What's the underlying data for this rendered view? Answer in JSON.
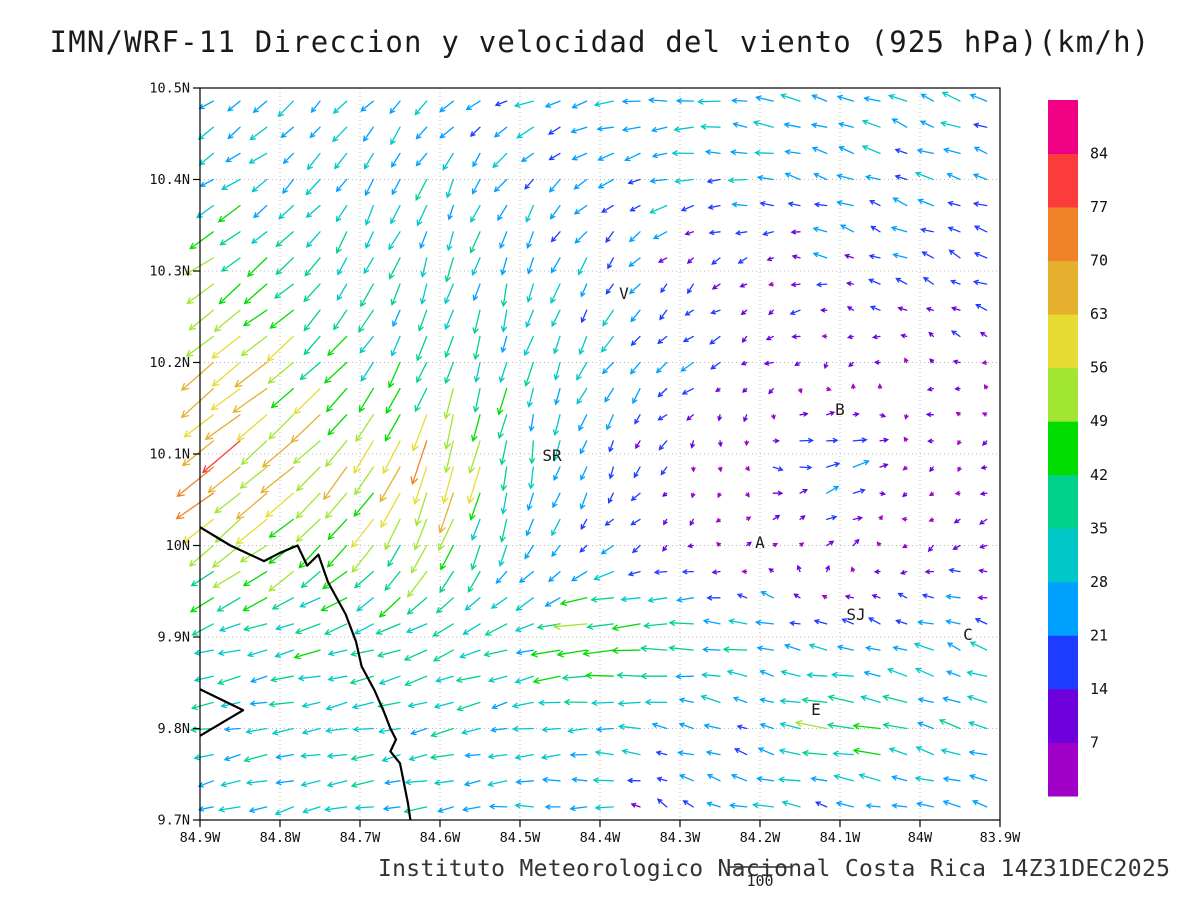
{
  "chart_data": {
    "type": "vector-field",
    "title": "IMN/WRF-11 Direccion y velocidad del viento (925 hPa)(km/h)",
    "caption": "Instituto Meteorologico Nacional Costa Rica 14Z31DEC2025",
    "ref_label": "100",
    "speed_units": "km/h",
    "level": "925 hPa",
    "x_ticks": [
      "84.9W",
      "84.8W",
      "84.7W",
      "84.6W",
      "84.5W",
      "84.4W",
      "84.3W",
      "84.2W",
      "84.1W",
      "84W",
      "83.9W"
    ],
    "y_ticks": [
      "10.5N",
      "10.4N",
      "10.3N",
      "10.2N",
      "10.1N",
      "10N",
      "9.9N",
      "9.8N",
      "9.7N"
    ],
    "lon_range": [
      -84.9,
      -83.9
    ],
    "lat_range": [
      9.7,
      10.5
    ],
    "grid": "dotted 0.1 degree",
    "colorbar": {
      "levels": [
        7,
        14,
        21,
        28,
        35,
        42,
        49,
        56,
        63,
        70,
        77,
        84
      ],
      "colors_low_to_high": [
        "#a000c8",
        "#6e00dc",
        "#1e3cff",
        "#00a0ff",
        "#00c8c8",
        "#00d28c",
        "#00dc00",
        "#a0e632",
        "#e6dc32",
        "#e6af2d",
        "#f08228",
        "#fa3c3c",
        "#f00082"
      ]
    },
    "stations": [
      {
        "label": "V",
        "lon": -84.37,
        "lat": 10.275
      },
      {
        "label": "B",
        "lon": -84.1,
        "lat": 10.148
      },
      {
        "label": "SR",
        "lon": -84.46,
        "lat": 10.098
      },
      {
        "label": "A",
        "lon": -84.2,
        "lat": 10.003
      },
      {
        "label": "SJ",
        "lon": -84.08,
        "lat": 9.924
      },
      {
        "label": "C",
        "lon": -83.94,
        "lat": 9.902
      },
      {
        "label": "E",
        "lon": -84.13,
        "lat": 9.82
      }
    ],
    "coastline": [
      [
        -84.9,
        10.02
      ],
      [
        -84.862,
        10.0
      ],
      [
        -84.82,
        9.983
      ],
      [
        -84.8,
        9.992
      ],
      [
        -84.778,
        10.0
      ],
      [
        -84.766,
        9.978
      ],
      [
        -84.752,
        9.99
      ],
      [
        -84.74,
        9.96
      ],
      [
        -84.718,
        9.925
      ],
      [
        -84.705,
        9.895
      ],
      [
        -84.698,
        9.868
      ],
      [
        -84.682,
        9.842
      ],
      [
        -84.67,
        9.818
      ],
      [
        -84.662,
        9.8
      ],
      [
        -84.655,
        9.788
      ],
      [
        -84.662,
        9.775
      ],
      [
        -84.65,
        9.762
      ],
      [
        -84.645,
        9.74
      ],
      [
        -84.64,
        9.718
      ],
      [
        -84.637,
        9.7
      ]
    ],
    "islet": [
      [
        -84.9,
        9.843
      ],
      [
        -84.846,
        9.82
      ],
      [
        -84.9,
        9.792
      ]
    ],
    "wind_grid": {
      "comment_units": "u eastward km/h, v northward km/h, estimated from plotted arrows",
      "lons": [
        -84.9,
        -84.8,
        -84.7,
        -84.6,
        -84.5,
        -84.4,
        -84.3,
        -84.2,
        -84.1,
        -84.0,
        -83.9
      ],
      "lats_top_to_bottom": [
        10.5,
        10.4,
        10.3,
        10.2,
        10.1,
        10.0,
        9.9,
        9.8,
        9.7
      ],
      "u": [
        [
          -22,
          -20,
          -18,
          -20,
          -24,
          -27,
          -30,
          -28,
          -26,
          -25,
          -24
        ],
        [
          -26,
          -22,
          -15,
          -12,
          -15,
          -20,
          -25,
          -25,
          -22,
          -22,
          -22
        ],
        [
          -40,
          -30,
          -15,
          -10,
          -8,
          -12,
          -10,
          -8,
          -15,
          -18,
          -18
        ],
        [
          -50,
          -45,
          -25,
          -12,
          -8,
          -15,
          -18,
          -10,
          -5,
          -6,
          -5
        ],
        [
          -55,
          -48,
          -35,
          -20,
          -5,
          -8,
          -5,
          8,
          30,
          -5,
          -6
        ],
        [
          -45,
          -40,
          -30,
          -20,
          -10,
          -15,
          -8,
          5,
          10,
          -10,
          -8
        ],
        [
          -30,
          -32,
          -35,
          -35,
          -30,
          -55,
          -40,
          -30,
          -20,
          -22,
          -25
        ],
        [
          -30,
          -30,
          -32,
          -30,
          -28,
          -30,
          -25,
          -15,
          -50,
          -30,
          -28
        ],
        [
          -28,
          -28,
          -30,
          -28,
          -26,
          -25,
          -8,
          -35,
          -15,
          -25,
          -22
        ]
      ],
      "v": [
        [
          -15,
          -18,
          -20,
          -15,
          -8,
          -5,
          0,
          5,
          8,
          10,
          10
        ],
        [
          -15,
          -18,
          -25,
          -28,
          -20,
          -12,
          -5,
          3,
          8,
          8,
          6
        ],
        [
          -30,
          -25,
          -30,
          -32,
          -30,
          -20,
          -10,
          -6,
          5,
          8,
          8
        ],
        [
          -40,
          -35,
          -30,
          -35,
          -32,
          -25,
          -12,
          -5,
          -5,
          4,
          3
        ],
        [
          -45,
          -40,
          -45,
          -70,
          -35,
          -20,
          -8,
          -5,
          8,
          -4,
          -3
        ],
        [
          -35,
          -30,
          -35,
          -45,
          -25,
          -12,
          -5,
          5,
          8,
          -5,
          -4
        ],
        [
          -10,
          -8,
          -10,
          -15,
          -10,
          -5,
          0,
          5,
          5,
          8,
          10
        ],
        [
          -5,
          -5,
          -5,
          -8,
          -5,
          0,
          5,
          8,
          5,
          10,
          8
        ],
        [
          -8,
          -8,
          -5,
          -5,
          0,
          0,
          10,
          5,
          5,
          5,
          6
        ]
      ]
    }
  }
}
